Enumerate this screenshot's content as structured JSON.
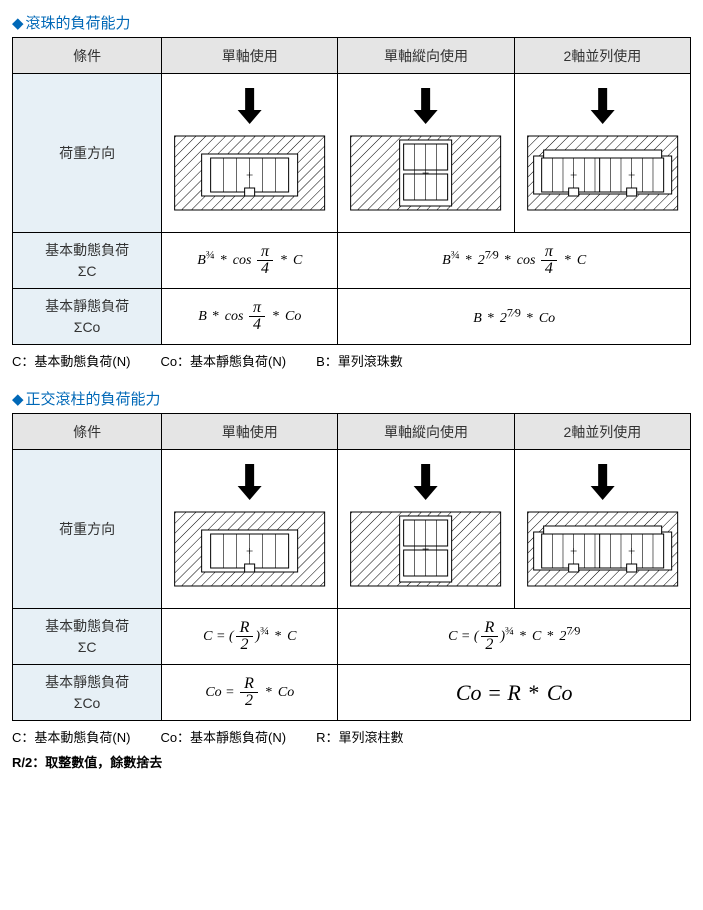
{
  "sections": [
    {
      "title": "滾珠的負荷能力",
      "headers": [
        "條件",
        "單軸使用",
        "單軸縱向使用",
        "2軸並列使用"
      ],
      "row_labels": {
        "load_dir": "荷重方向",
        "dynamic_html": "基本動態負荷<br>ΣC",
        "static_html": "基本靜態負荷<br>ΣCo"
      },
      "diagrams": [
        "single_h",
        "single_v",
        "dual_h"
      ],
      "formulas": {
        "dynamic": [
          {
            "span": 1,
            "html": "<span class='formula'><i>B</i><span class='sup'>¾</span><span class='op'> * </span>cos <span class='frac'><span class='num'>π</span><span class='den'>4</span></span><span class='op'> * </span><i>C</i></span>"
          },
          {
            "span": 2,
            "html": "<span class='formula'><i>B</i><span class='sup'>¾</span><span class='op'> * </span>2<span class='sup'>7⁄9</span><span class='op'> * </span>cos <span class='frac'><span class='num'>π</span><span class='den'>4</span></span><span class='op'> * </span><i>C</i></span>"
          }
        ],
        "static": [
          {
            "span": 1,
            "html": "<span class='formula'><i>B</i><span class='op'> * </span>cos <span class='frac'><span class='num'>π</span><span class='den'>4</span></span><span class='op'> * </span><i>Co</i></span>"
          },
          {
            "span": 2,
            "html": "<span class='formula'><i>B</i><span class='op'> * </span>2<span class='sup'>7⁄9</span><span class='op'> * </span><i>Co</i></span>"
          }
        ]
      },
      "legend": [
        "C：基本動態負荷(N)",
        "Co：基本靜態負荷(N)",
        "B：單列滾珠數"
      ],
      "legend_extra": null
    },
    {
      "title": "正交滾柱的負荷能力",
      "headers": [
        "條件",
        "單軸使用",
        "單軸縱向使用",
        "2軸並列使用"
      ],
      "row_labels": {
        "load_dir": "荷重方向",
        "dynamic_html": "基本動態負荷<br>ΣC",
        "static_html": "基本靜態負荷<br>ΣCo"
      },
      "diagrams": [
        "single_h",
        "single_v",
        "dual_h"
      ],
      "formulas": {
        "dynamic": [
          {
            "span": 1,
            "html": "<span class='formula'><i>C</i> = (<span class='frac'><span class='num'>R</span><span class='den'>2</span></span>)<span class='sup'>¾</span><span class='op'> * </span><i>C</i></span>"
          },
          {
            "span": 2,
            "html": "<span class='formula'><i>C</i> = (<span class='frac'><span class='num'>R</span><span class='den'>2</span></span>)<span class='sup'>¾</span><span class='op'> * </span><i>C</i><span class='op'> * </span>2<span class='sup'>7⁄9</span></span>"
          }
        ],
        "static": [
          {
            "span": 1,
            "html": "<span class='formula'><i>Co</i> = <span class='frac'><span class='num'>R</span><span class='den'>2</span></span><span class='op'> * </span><i>Co</i></span>"
          },
          {
            "span": 2,
            "html": "<span class='formula' style='font-size:22px'><i>Co</i> = <i style=\"color:#000\">R</i><span class='op'> * </span><i>Co</i></span>"
          }
        ]
      },
      "legend": [
        "C：基本動態負荷(N)",
        "Co：基本靜態負荷(N)",
        "R：單列滾柱數"
      ],
      "legend_extra": "R/2：取整數值，餘數捨去"
    }
  ],
  "colors": {
    "title": "#0068b7",
    "header_bg": "#e5e5e5",
    "label_bg": "#e7f0f6",
    "border": "#000000"
  },
  "col_widths_pct": [
    22,
    26,
    26,
    26
  ]
}
